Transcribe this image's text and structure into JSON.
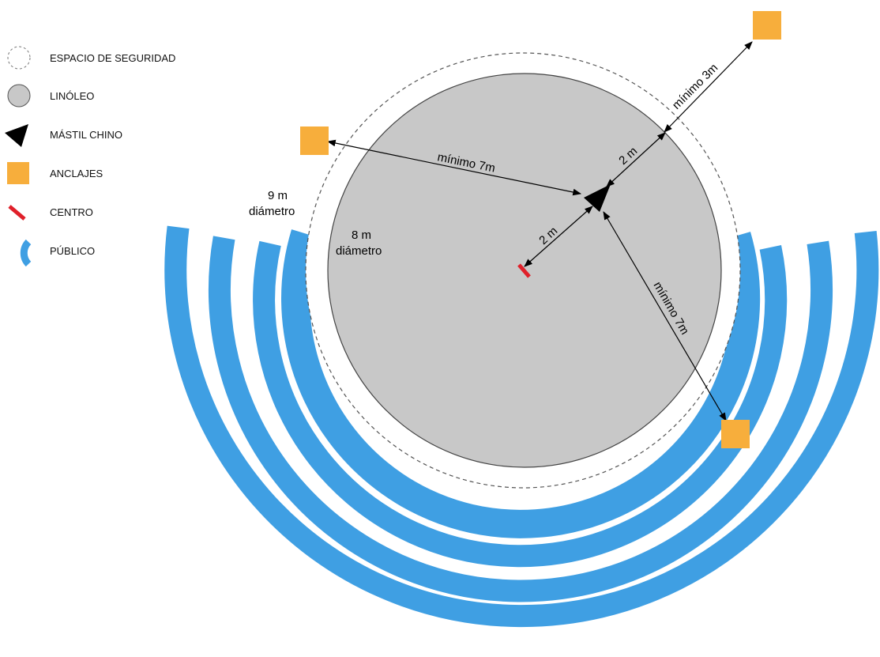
{
  "legend": {
    "items": [
      {
        "label": "ESPACIO DE SEGURIDAD",
        "icon": "dashed-circle-icon"
      },
      {
        "label": "LINÓLEO",
        "icon": "gray-circle-icon"
      },
      {
        "label": "MÁSTIL CHINO",
        "icon": "black-triangle-icon"
      },
      {
        "label": "ANCLAJES",
        "icon": "orange-square-icon"
      },
      {
        "label": "CENTRO",
        "icon": "red-bar-icon"
      },
      {
        "label": "PÚBLICO",
        "icon": "blue-arc-icon"
      }
    ]
  },
  "labels": {
    "safety_diameter_line1": "9 m",
    "safety_diameter_line2": "diámetro",
    "linoleum_diameter_line1": "8 m",
    "linoleum_diameter_line2": "diámetro",
    "dim_center_mast": "2 m",
    "dim_mast_edge": "2 m",
    "dim_anchor_left": "mínimo 7m",
    "dim_anchor_top_right": "mínimo 3m",
    "dim_anchor_bottom_right": "mínimo 7m"
  },
  "colors": {
    "linoleum": "#c8c8c8",
    "public": "#3f9fe3",
    "anchor": "#f7ae3c",
    "center": "#e0202a",
    "mast": "#000000"
  }
}
